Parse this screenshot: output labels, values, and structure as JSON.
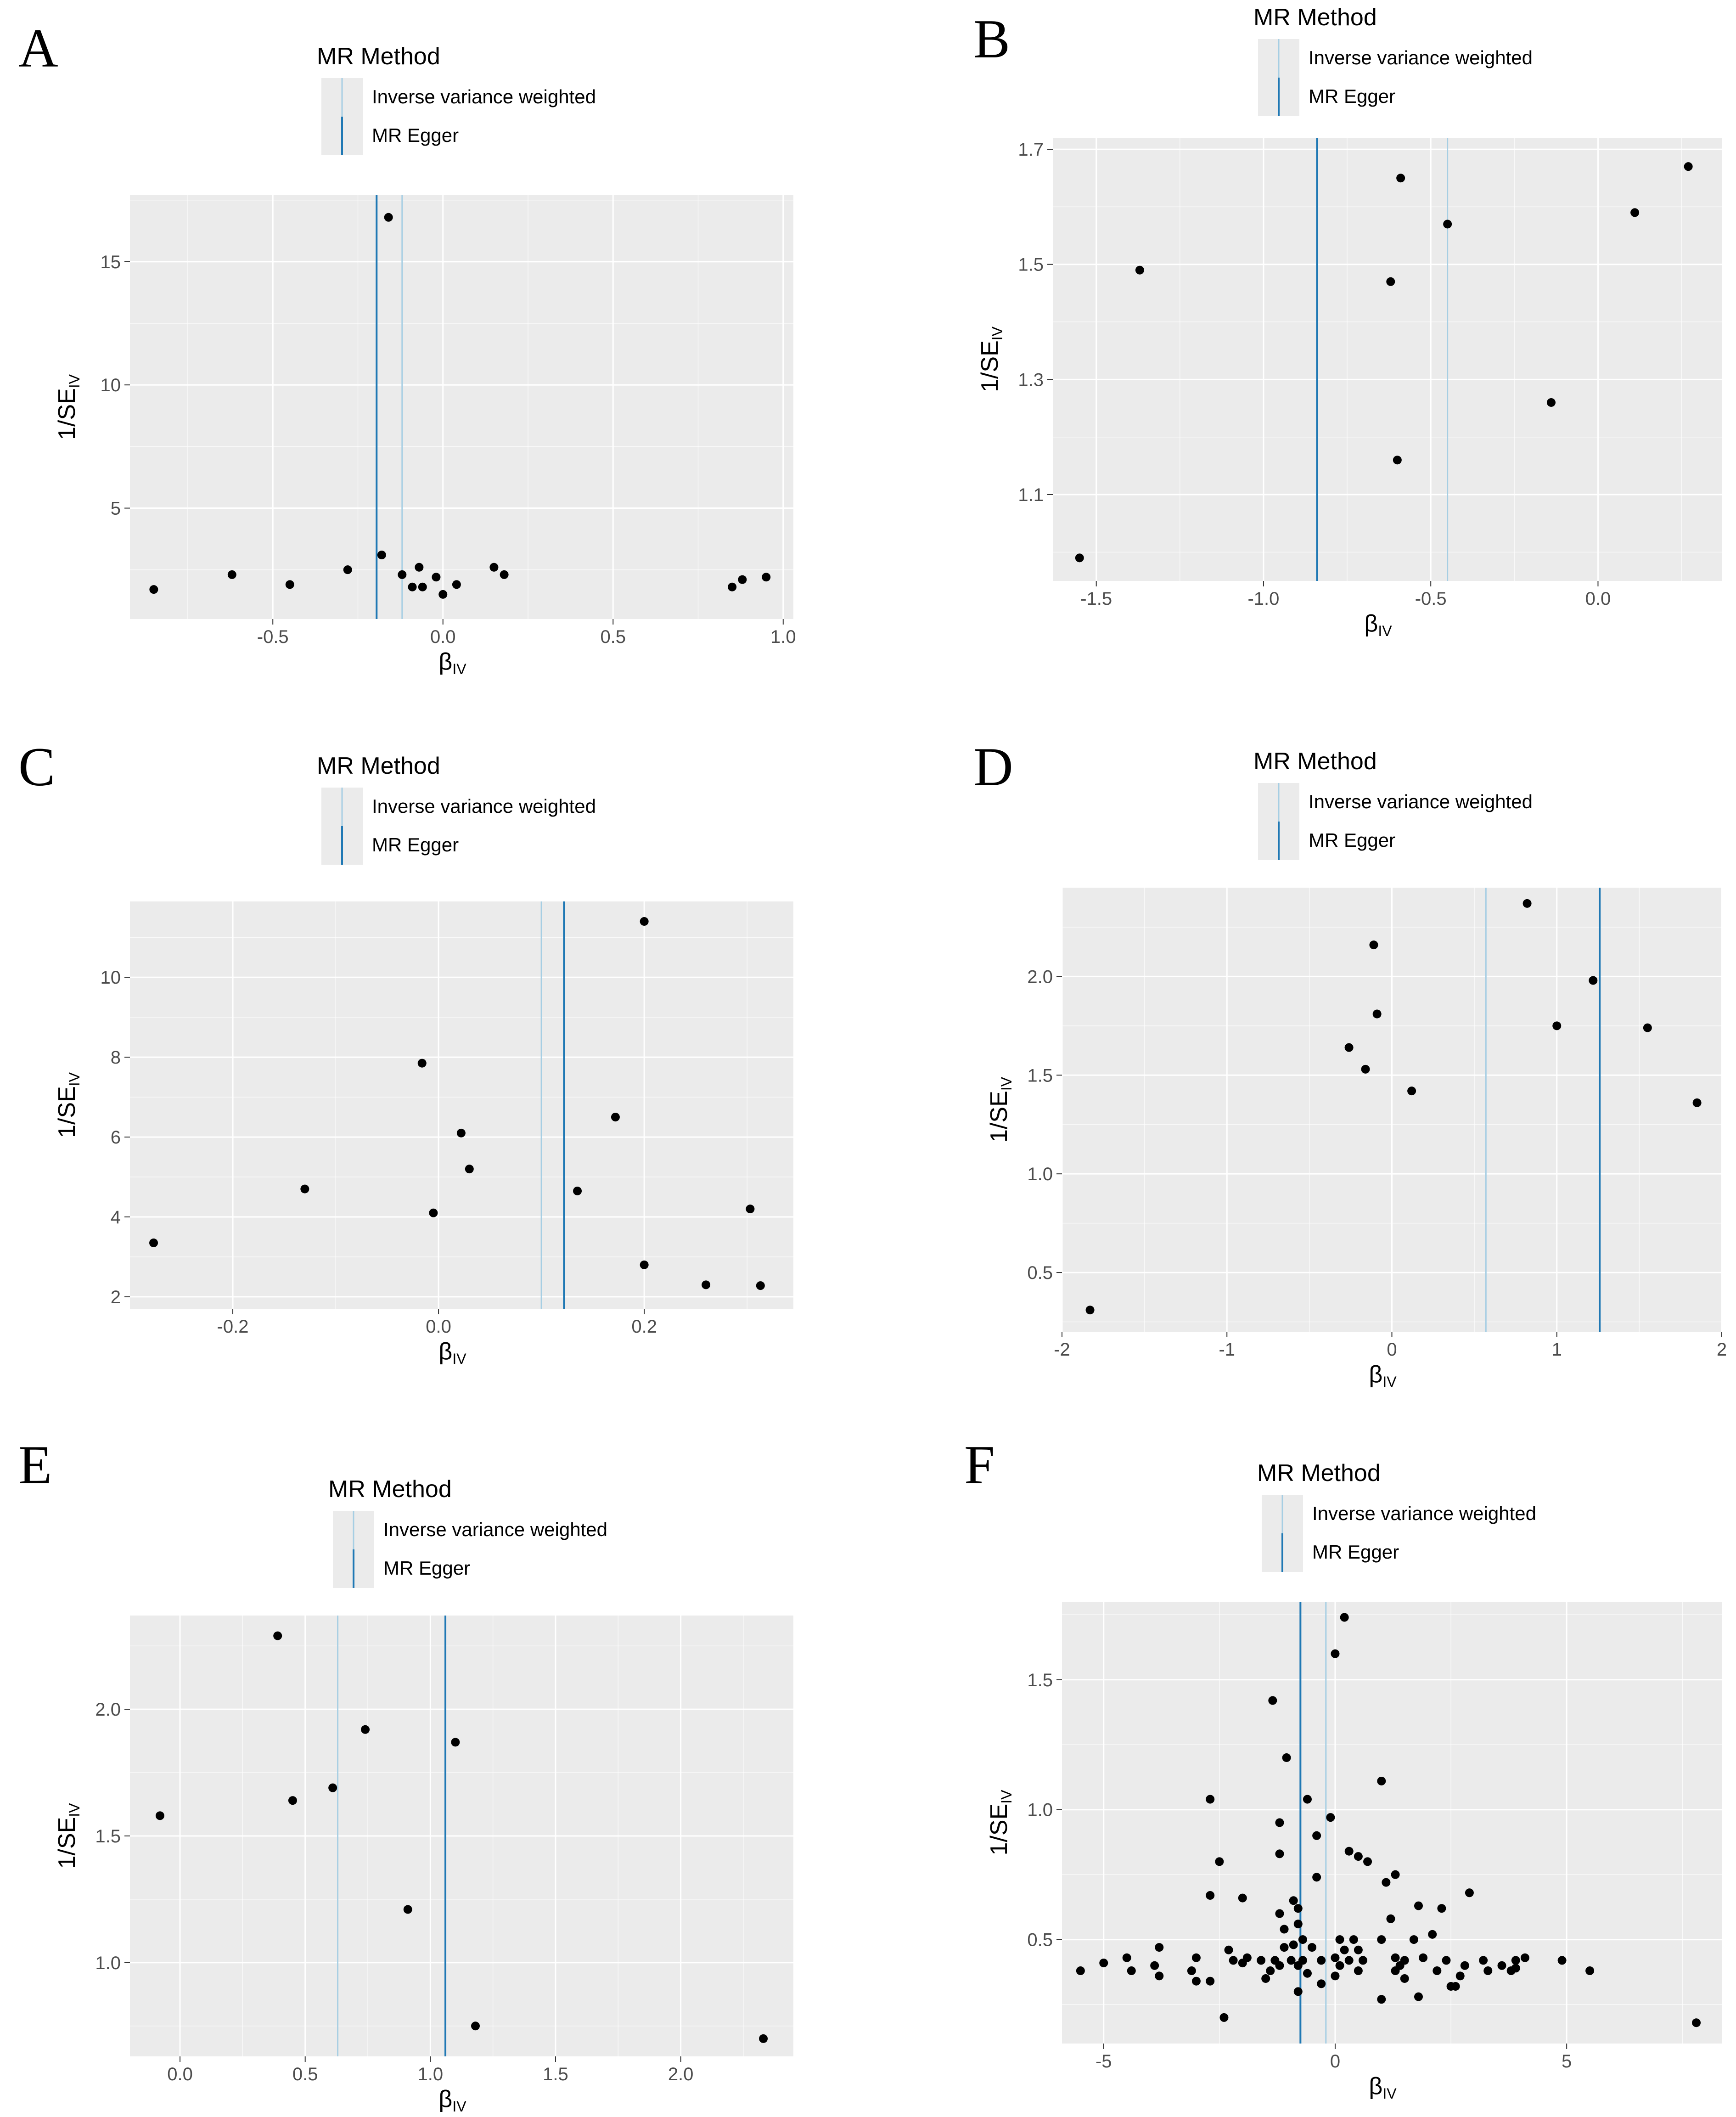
{
  "legend": {
    "title": "MR Method",
    "ivw_label": "Inverse variance weighted",
    "egger_label": "MR Egger",
    "ivw_color": "#a6cee3",
    "egger_color": "#1f78b4"
  },
  "colors": {
    "panel_bg": "#ebebeb",
    "grid_major": "#ffffff",
    "point": "#000000"
  },
  "chart_data": [
    {
      "panel": "A",
      "type": "scatter",
      "title": "",
      "xlabel_main": "β",
      "xlabel_sub": "IV",
      "ylabel_main": "1/SE",
      "ylabel_sub": "IV",
      "xlim": [
        -0.92,
        1.03
      ],
      "ylim": [
        0.5,
        17.7
      ],
      "xticks": [
        -0.5,
        0.0,
        0.5,
        1.0
      ],
      "xtick_labels": [
        "-0.5",
        "0.0",
        "0.5",
        "1.0"
      ],
      "yticks": [
        5,
        10,
        15
      ],
      "ytick_labels": [
        "5",
        "10",
        "15"
      ],
      "ivw_slope": -0.12,
      "egger_slope": -0.195,
      "points": [
        {
          "x": -0.85,
          "y": 1.7
        },
        {
          "x": -0.62,
          "y": 2.3
        },
        {
          "x": -0.45,
          "y": 1.9
        },
        {
          "x": -0.28,
          "y": 2.5
        },
        {
          "x": -0.18,
          "y": 3.1
        },
        {
          "x": -0.16,
          "y": 16.8
        },
        {
          "x": -0.12,
          "y": 2.3
        },
        {
          "x": -0.09,
          "y": 1.8
        },
        {
          "x": -0.07,
          "y": 2.6
        },
        {
          "x": -0.06,
          "y": 1.8
        },
        {
          "x": -0.02,
          "y": 2.2
        },
        {
          "x": 0.0,
          "y": 1.5
        },
        {
          "x": 0.04,
          "y": 1.9
        },
        {
          "x": 0.15,
          "y": 2.6
        },
        {
          "x": 0.18,
          "y": 2.3
        },
        {
          "x": 0.85,
          "y": 1.8
        },
        {
          "x": 0.88,
          "y": 2.1
        },
        {
          "x": 0.95,
          "y": 2.2
        }
      ]
    },
    {
      "panel": "B",
      "type": "scatter",
      "title": "",
      "xlabel_main": "β",
      "xlabel_sub": "IV",
      "ylabel_main": "1/SE",
      "ylabel_sub": "IV",
      "xlim": [
        -1.63,
        0.37
      ],
      "ylim": [
        0.95,
        1.72
      ],
      "xticks": [
        -1.5,
        -1.0,
        -0.5,
        0.0
      ],
      "xtick_labels": [
        "-1.5",
        "-1.0",
        "-0.5",
        "0.0"
      ],
      "yticks": [
        1.1,
        1.3,
        1.5,
        1.7
      ],
      "ytick_labels": [
        "1.1",
        "1.3",
        "1.5",
        "1.7"
      ],
      "ivw_slope": -0.45,
      "egger_slope": -0.84,
      "points": [
        {
          "x": -1.55,
          "y": 0.99
        },
        {
          "x": -1.37,
          "y": 1.49
        },
        {
          "x": -0.62,
          "y": 1.47
        },
        {
          "x": -0.59,
          "y": 1.65
        },
        {
          "x": -0.6,
          "y": 1.16
        },
        {
          "x": -0.45,
          "y": 1.57
        },
        {
          "x": -0.14,
          "y": 1.26
        },
        {
          "x": 0.11,
          "y": 1.59
        },
        {
          "x": 0.27,
          "y": 1.67
        }
      ]
    },
    {
      "panel": "C",
      "type": "scatter",
      "title": "",
      "xlabel_main": "β",
      "xlabel_sub": "IV",
      "ylabel_main": "1/SE",
      "ylabel_sub": "IV",
      "xlim": [
        -0.3,
        0.345
      ],
      "ylim": [
        1.7,
        11.9
      ],
      "xticks": [
        -0.2,
        0.0,
        0.2
      ],
      "xtick_labels": [
        "-0.2",
        "0.0",
        "0.2"
      ],
      "yticks": [
        2,
        4,
        6,
        8,
        10
      ],
      "ytick_labels": [
        "2",
        "4",
        "6",
        "8",
        "10"
      ],
      "ivw_slope": 0.1,
      "egger_slope": 0.122,
      "points": [
        {
          "x": -0.277,
          "y": 3.35
        },
        {
          "x": -0.13,
          "y": 4.7
        },
        {
          "x": -0.016,
          "y": 7.85
        },
        {
          "x": -0.005,
          "y": 4.1
        },
        {
          "x": 0.022,
          "y": 6.1
        },
        {
          "x": 0.03,
          "y": 5.2
        },
        {
          "x": 0.135,
          "y": 4.65
        },
        {
          "x": 0.172,
          "y": 6.5
        },
        {
          "x": 0.2,
          "y": 11.4
        },
        {
          "x": 0.2,
          "y": 2.8
        },
        {
          "x": 0.26,
          "y": 2.3
        },
        {
          "x": 0.303,
          "y": 4.2
        },
        {
          "x": 0.313,
          "y": 2.28
        }
      ]
    },
    {
      "panel": "D",
      "type": "scatter",
      "title": "",
      "xlabel_main": "β",
      "xlabel_sub": "IV",
      "ylabel_main": "1/SE",
      "ylabel_sub": "IV",
      "xlim": [
        -2.0,
        2.0
      ],
      "ylim": [
        0.2,
        2.45
      ],
      "xticks": [
        -2,
        -1,
        0,
        1,
        2
      ],
      "xtick_labels": [
        "-2",
        "-1",
        "0",
        "1",
        "2"
      ],
      "yticks": [
        0.5,
        1.0,
        1.5,
        2.0
      ],
      "ytick_labels": [
        "0.5",
        "1.0",
        "1.5",
        "2.0"
      ],
      "ivw_slope": 0.57,
      "egger_slope": 1.26,
      "points": [
        {
          "x": -1.83,
          "y": 0.31
        },
        {
          "x": -0.26,
          "y": 1.64
        },
        {
          "x": -0.16,
          "y": 1.53
        },
        {
          "x": -0.11,
          "y": 2.16
        },
        {
          "x": -0.09,
          "y": 1.81
        },
        {
          "x": 0.12,
          "y": 1.42
        },
        {
          "x": 0.82,
          "y": 2.37
        },
        {
          "x": 1.0,
          "y": 1.75
        },
        {
          "x": 1.22,
          "y": 1.98
        },
        {
          "x": 1.55,
          "y": 1.74
        },
        {
          "x": 1.85,
          "y": 1.36
        }
      ]
    },
    {
      "panel": "E",
      "type": "scatter",
      "title": "",
      "xlabel_main": "β",
      "xlabel_sub": "IV",
      "ylabel_main": "1/SE",
      "ylabel_sub": "IV",
      "xlim": [
        -0.2,
        2.45
      ],
      "ylim": [
        0.63,
        2.37
      ],
      "xticks": [
        0.0,
        0.5,
        1.0,
        1.5,
        2.0
      ],
      "xtick_labels": [
        "0.0",
        "0.5",
        "1.0",
        "1.5",
        "2.0"
      ],
      "yticks": [
        1.0,
        1.5,
        2.0
      ],
      "ytick_labels": [
        "1.0",
        "1.5",
        "2.0"
      ],
      "ivw_slope": 0.63,
      "egger_slope": 1.06,
      "points": [
        {
          "x": -0.08,
          "y": 1.58
        },
        {
          "x": 0.39,
          "y": 2.29
        },
        {
          "x": 0.45,
          "y": 1.64
        },
        {
          "x": 0.61,
          "y": 1.69
        },
        {
          "x": 0.74,
          "y": 1.92
        },
        {
          "x": 0.91,
          "y": 1.21
        },
        {
          "x": 1.1,
          "y": 1.87
        },
        {
          "x": 1.18,
          "y": 0.75
        },
        {
          "x": 2.33,
          "y": 0.7
        }
      ]
    },
    {
      "panel": "F",
      "type": "scatter",
      "title": "",
      "xlabel_main": "β",
      "xlabel_sub": "IV",
      "ylabel_main": "1/SE",
      "ylabel_sub": "IV",
      "xlim": [
        -5.9,
        8.35
      ],
      "ylim": [
        0.1,
        1.8
      ],
      "xticks": [
        -5,
        0,
        5
      ],
      "xtick_labels": [
        "-5",
        "0",
        "5"
      ],
      "yticks": [
        0.5,
        1.0,
        1.5
      ],
      "ytick_labels": [
        "0.5",
        "1.0",
        "1.5"
      ],
      "ivw_slope": -0.2,
      "egger_slope": -0.75,
      "points": [
        {
          "x": 0.2,
          "y": 1.74
        },
        {
          "x": 0.0,
          "y": 1.6
        },
        {
          "x": -1.35,
          "y": 1.42
        },
        {
          "x": -1.05,
          "y": 1.2
        },
        {
          "x": 1.0,
          "y": 1.11
        },
        {
          "x": -2.7,
          "y": 1.04
        },
        {
          "x": -0.6,
          "y": 1.04
        },
        {
          "x": -1.2,
          "y": 0.95
        },
        {
          "x": -0.1,
          "y": 0.97
        },
        {
          "x": -0.4,
          "y": 0.9
        },
        {
          "x": 0.3,
          "y": 0.84
        },
        {
          "x": 0.5,
          "y": 0.82
        },
        {
          "x": -1.2,
          "y": 0.83
        },
        {
          "x": -2.5,
          "y": 0.8
        },
        {
          "x": 0.7,
          "y": 0.8
        },
        {
          "x": 1.3,
          "y": 0.75
        },
        {
          "x": -0.4,
          "y": 0.74
        },
        {
          "x": 1.1,
          "y": 0.72
        },
        {
          "x": -2.7,
          "y": 0.67
        },
        {
          "x": -2.0,
          "y": 0.66
        },
        {
          "x": 2.9,
          "y": 0.68
        },
        {
          "x": -0.9,
          "y": 0.65
        },
        {
          "x": 1.8,
          "y": 0.63
        },
        {
          "x": -1.2,
          "y": 0.6
        },
        {
          "x": -0.8,
          "y": 0.62
        },
        {
          "x": 2.3,
          "y": 0.62
        },
        {
          "x": 1.2,
          "y": 0.58
        },
        {
          "x": -0.8,
          "y": 0.56
        },
        {
          "x": -1.1,
          "y": 0.54
        },
        {
          "x": 0.1,
          "y": 0.5
        },
        {
          "x": 0.4,
          "y": 0.5
        },
        {
          "x": -0.7,
          "y": 0.5
        },
        {
          "x": 1.0,
          "y": 0.5
        },
        {
          "x": 1.7,
          "y": 0.5
        },
        {
          "x": 2.1,
          "y": 0.52
        },
        {
          "x": -0.9,
          "y": 0.48
        },
        {
          "x": -1.1,
          "y": 0.47
        },
        {
          "x": -0.5,
          "y": 0.47
        },
        {
          "x": 0.2,
          "y": 0.46
        },
        {
          "x": 0.5,
          "y": 0.46
        },
        {
          "x": -3.8,
          "y": 0.47
        },
        {
          "x": -2.3,
          "y": 0.46
        },
        {
          "x": -4.5,
          "y": 0.43
        },
        {
          "x": -3.0,
          "y": 0.43
        },
        {
          "x": -2.2,
          "y": 0.42
        },
        {
          "x": -1.9,
          "y": 0.43
        },
        {
          "x": -1.6,
          "y": 0.42
        },
        {
          "x": -1.3,
          "y": 0.42
        },
        {
          "x": -0.95,
          "y": 0.42
        },
        {
          "x": -0.7,
          "y": 0.42
        },
        {
          "x": -0.3,
          "y": 0.42
        },
        {
          "x": 0.0,
          "y": 0.43
        },
        {
          "x": 0.3,
          "y": 0.42
        },
        {
          "x": 0.6,
          "y": 0.42
        },
        {
          "x": 1.3,
          "y": 0.43
        },
        {
          "x": 1.5,
          "y": 0.42
        },
        {
          "x": 1.9,
          "y": 0.43
        },
        {
          "x": 2.4,
          "y": 0.42
        },
        {
          "x": 3.2,
          "y": 0.42
        },
        {
          "x": 3.9,
          "y": 0.42
        },
        {
          "x": 4.1,
          "y": 0.43
        },
        {
          "x": 4.9,
          "y": 0.42
        },
        {
          "x": -5.0,
          "y": 0.41
        },
        {
          "x": -3.9,
          "y": 0.4
        },
        {
          "x": -2.0,
          "y": 0.41
        },
        {
          "x": -1.2,
          "y": 0.4
        },
        {
          "x": -0.8,
          "y": 0.4
        },
        {
          "x": 0.1,
          "y": 0.4
        },
        {
          "x": 1.4,
          "y": 0.4
        },
        {
          "x": 2.8,
          "y": 0.4
        },
        {
          "x": 3.6,
          "y": 0.4
        },
        {
          "x": 3.9,
          "y": 0.39
        },
        {
          "x": -5.5,
          "y": 0.38
        },
        {
          "x": -4.4,
          "y": 0.38
        },
        {
          "x": -3.1,
          "y": 0.38
        },
        {
          "x": -1.4,
          "y": 0.38
        },
        {
          "x": -0.6,
          "y": 0.37
        },
        {
          "x": 0.5,
          "y": 0.38
        },
        {
          "x": 1.3,
          "y": 0.38
        },
        {
          "x": 2.2,
          "y": 0.38
        },
        {
          "x": 3.3,
          "y": 0.38
        },
        {
          "x": 3.8,
          "y": 0.38
        },
        {
          "x": 5.5,
          "y": 0.38
        },
        {
          "x": -3.8,
          "y": 0.36
        },
        {
          "x": -2.7,
          "y": 0.34
        },
        {
          "x": -1.5,
          "y": 0.35
        },
        {
          "x": -0.3,
          "y": 0.33
        },
        {
          "x": 0.0,
          "y": 0.36
        },
        {
          "x": 1.5,
          "y": 0.35
        },
        {
          "x": 2.7,
          "y": 0.36
        },
        {
          "x": -3.0,
          "y": 0.34
        },
        {
          "x": 2.5,
          "y": 0.32
        },
        {
          "x": 2.6,
          "y": 0.32
        },
        {
          "x": -0.8,
          "y": 0.3
        },
        {
          "x": 1.0,
          "y": 0.27
        },
        {
          "x": 1.8,
          "y": 0.28
        },
        {
          "x": -2.4,
          "y": 0.2
        },
        {
          "x": 7.8,
          "y": 0.18
        }
      ]
    }
  ]
}
